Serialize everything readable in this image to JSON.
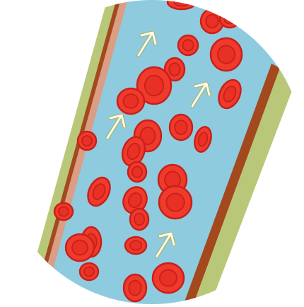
{
  "colors": {
    "plasma": "#8ecbdf",
    "wall_outer": "#b9c878",
    "wall_brown": "#a4481d",
    "wall_pink": "#dc9d85",
    "cell_edge": "#c8201a",
    "cell_fill": "#f03a2c",
    "cell_center": "#e83024",
    "arrow": "#fbfbe7",
    "arrow_outline": "#a7ad62"
  },
  "icons": {
    "flow_arrow": "arrow-up-right-icon",
    "cell": "red-blood-cell-icon"
  }
}
